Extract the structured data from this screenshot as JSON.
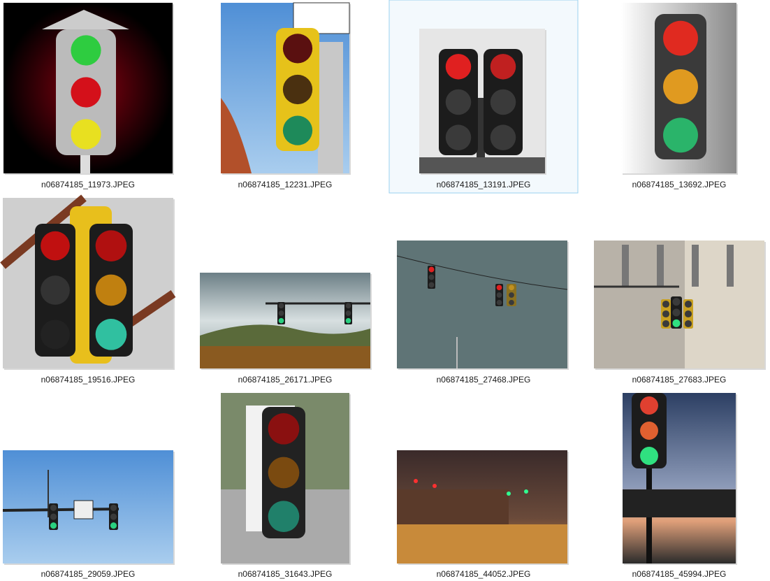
{
  "files": [
    {
      "name": "n06874185_11973.JPEG"
    },
    {
      "name": "n06874185_12231.JPEG"
    },
    {
      "name": "n06874185_13191.JPEG"
    },
    {
      "name": "n06874185_13692.JPEG"
    },
    {
      "name": "n06874185_19516.JPEG"
    },
    {
      "name": "n06874185_26171.JPEG"
    },
    {
      "name": "n06874185_27468.JPEG"
    },
    {
      "name": "n06874185_27683.JPEG"
    },
    {
      "name": "n06874185_29059.JPEG"
    },
    {
      "name": "n06874185_31643.JPEG"
    },
    {
      "name": "n06874185_44052.JPEG"
    },
    {
      "name": "n06874185_45994.JPEG"
    }
  ]
}
